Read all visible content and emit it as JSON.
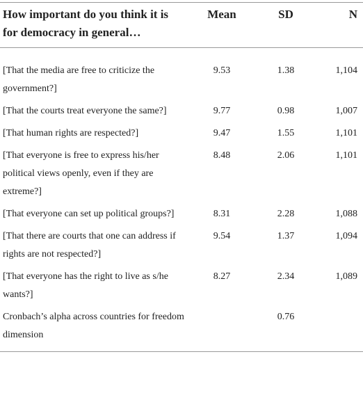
{
  "table": {
    "header": [
      "How important do you think it is for democracy in general…",
      "Mean",
      "SD",
      "N"
    ],
    "rows": [
      {
        "label": "[That the media are free to criticize the government?]",
        "mean": "9.53",
        "sd": "1.38",
        "n": "1,104"
      },
      {
        "label": "[That the courts treat everyone the same?]",
        "mean": "9.77",
        "sd": "0.98",
        "n": "1,007"
      },
      {
        "label": "[That human rights are respected?]",
        "mean": "9.47",
        "sd": "1.55",
        "n": "1,101"
      },
      {
        "label": "[That everyone is free to express his/her political views openly, even if they are extreme?]",
        "mean": "8.48",
        "sd": "2.06",
        "n": "1,101"
      },
      {
        "label": "[That everyone can set up political groups?]",
        "mean": "8.31",
        "sd": "2.28",
        "n": "1,088"
      },
      {
        "label": "[That there are courts that one can address if rights are not respected?]",
        "mean": "9.54",
        "sd": "1.37",
        "n": "1,094"
      },
      {
        "label": "[That everyone has the right to live as s/he wants?]",
        "mean": "8.27",
        "sd": "2.34",
        "n": "1,089"
      },
      {
        "label": "Cronbach’s alpha across countries for freedom dimension",
        "sd": "0.76"
      }
    ]
  }
}
